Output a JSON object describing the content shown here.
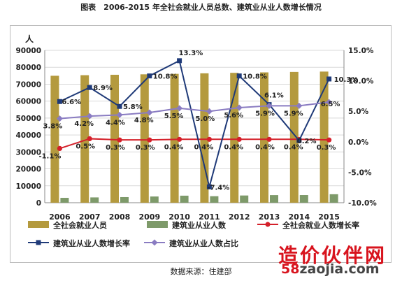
{
  "figure_title": "图表　2006-2015 年全社会就业人员总数、建筑业从业人数增长情况",
  "source_note": "数据来源：住建部",
  "watermark": {
    "cn": "造价伙伴网",
    "url_num": "58",
    "url_rest": "zaojia.com"
  },
  "chart_data": {
    "type": "bar",
    "categories": [
      "2006",
      "2007",
      "2008",
      "2009",
      "2010",
      "2011",
      "2012",
      "2013",
      "2014",
      "2015"
    ],
    "y_left": {
      "unit_label": "人",
      "ylim": [
        0,
        90000
      ],
      "ticks": [
        0,
        10000,
        20000,
        30000,
        40000,
        50000,
        60000,
        70000,
        80000,
        90000
      ]
    },
    "y_right": {
      "ylim": [
        -10.0,
        15.0
      ],
      "ticks": [
        "-10.0%",
        "-5.0%",
        "0.0%",
        "5.0%",
        "10.0%",
        "15.0%"
      ],
      "tick_values": [
        -10,
        -5,
        0,
        5,
        10,
        15
      ]
    },
    "grid": true,
    "legend_placement": "bottom",
    "series": [
      {
        "name": "全社会就业人员",
        "type": "bar",
        "axis": "left",
        "color": "#b49a3e",
        "values": [
          74978,
          75321,
          75564,
          75828,
          76105,
          76420,
          76704,
          76977,
          77253,
          77451
        ]
      },
      {
        "name": "建筑业从业人数",
        "type": "bar",
        "axis": "left",
        "color": "#7e9a6a",
        "values": [
          2878,
          3133,
          3314,
          3672,
          4160,
          3852,
          4267,
          4499,
          4536,
          5003
        ]
      },
      {
        "name": "全社会就业人数增长率",
        "type": "line",
        "axis": "right",
        "color": "#d4202a",
        "marker": "circle",
        "values": [
          -1.1,
          0.5,
          0.3,
          0.3,
          0.4,
          0.4,
          0.4,
          0.4,
          0.4,
          0.3
        ],
        "labels": [
          "-1.1%",
          "0.5%",
          "0.3%",
          "0.3%",
          "0.4%",
          "0.4%",
          "0.4%",
          "0.4%",
          "0.4%",
          "0.3%"
        ]
      },
      {
        "name": "建筑业从业人数增长率",
        "type": "line",
        "axis": "right",
        "color": "#1f3a78",
        "marker": "square",
        "values": [
          6.6,
          8.9,
          5.8,
          10.8,
          13.3,
          -7.4,
          10.8,
          6.1,
          0.2,
          10.3
        ],
        "labels": [
          "6.6%",
          "8.9%",
          "5.8%",
          "10.8%",
          "13.3%",
          "-7.4%",
          "10.8%",
          "6.1%",
          "0.2%",
          "10.3%"
        ]
      },
      {
        "name": "建筑业从业人数占比",
        "type": "line",
        "axis": "right",
        "color": "#8a7cc2",
        "marker": "diamond",
        "values": [
          3.8,
          4.2,
          4.4,
          4.8,
          5.5,
          5.0,
          5.6,
          5.9,
          5.9,
          6.5
        ],
        "labels": [
          "3.8%",
          "4.2%",
          "4.4%",
          "4.8%",
          "5.5%",
          "5.0%",
          "5.6%",
          "5.9%",
          "5.9%",
          "6.5%"
        ]
      }
    ]
  }
}
